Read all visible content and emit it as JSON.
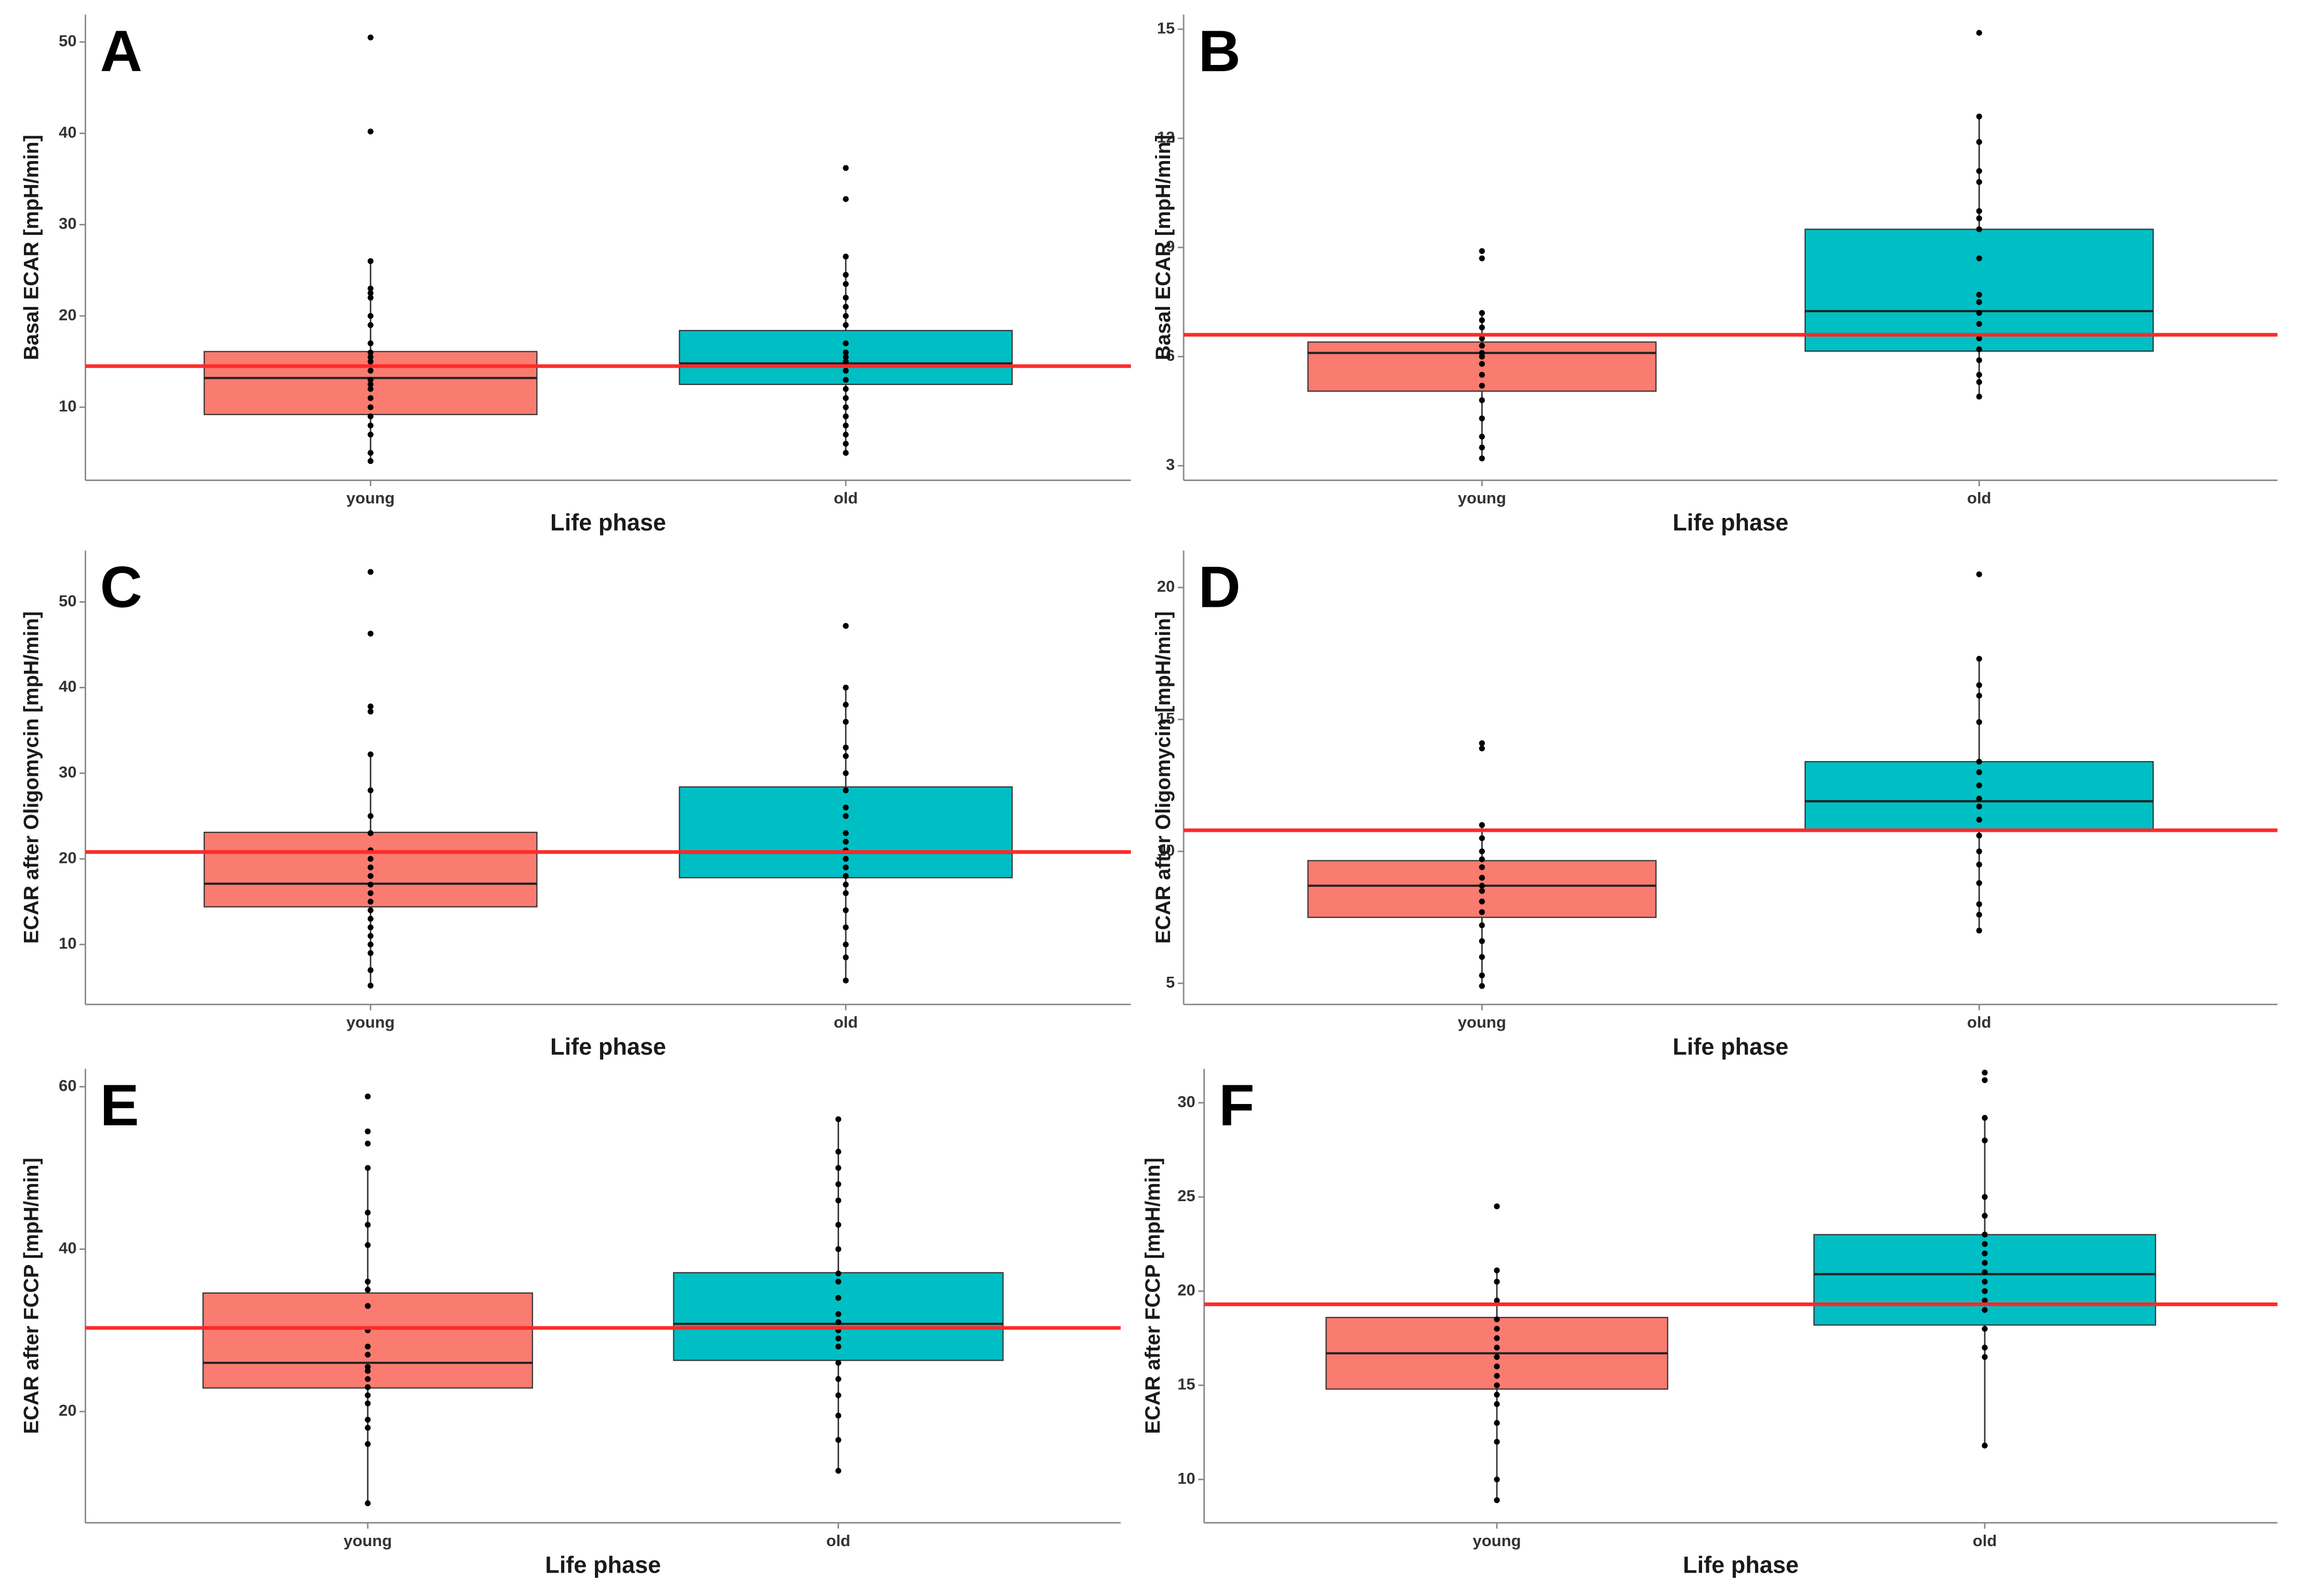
{
  "chart_data": [
    {
      "type": "box",
      "panel_label": "A",
      "ylabel": "Basal ECAR [mpH/min]",
      "xlabel": "Life phase",
      "categories": [
        "young",
        "old"
      ],
      "colors": [
        "#fa7b6f",
        "#00bfc4"
      ],
      "boxes": [
        {
          "whisker_low": 4.1,
          "q1": 9.2,
          "median": 13.2,
          "q3": 16.1,
          "whisker_high": 26,
          "points": [
            50.5,
            40.2,
            26,
            23,
            22.5,
            22,
            20,
            19,
            17,
            16,
            15.5,
            15,
            14,
            13,
            12.5,
            12,
            11,
            10,
            9,
            8,
            7,
            5,
            4.1
          ]
        },
        {
          "whisker_low": 5,
          "q1": 12.5,
          "median": 14.8,
          "q3": 18.4,
          "whisker_high": 26.5,
          "points": [
            36.2,
            32.8,
            26.5,
            24.5,
            23.5,
            22,
            21,
            20,
            19,
            17,
            16,
            15.5,
            15,
            14,
            13,
            12,
            11,
            10,
            9,
            8,
            7,
            6,
            5
          ]
        }
      ],
      "reference_line": 14.5,
      "reference_color": "#ff2a2a",
      "ylim": [
        2,
        53
      ],
      "yticks": [
        10,
        20,
        30,
        40,
        50
      ]
    },
    {
      "type": "box",
      "panel_label": "B",
      "ylabel": "Basal ECAR [mpH/min]",
      "xlabel": "Life phase",
      "categories": [
        "young",
        "old"
      ],
      "colors": [
        "#fa7b6f",
        "#00bfc4"
      ],
      "boxes": [
        {
          "whisker_low": 3.2,
          "q1": 5.05,
          "median": 6.1,
          "q3": 6.4,
          "whisker_high": 7.2,
          "points": [
            8.9,
            8.7,
            7.2,
            7,
            6.8,
            6.5,
            6.3,
            6.1,
            6,
            5.8,
            5.5,
            5.2,
            4.8,
            4.3,
            3.8,
            3.5,
            3.2
          ]
        },
        {
          "whisker_low": 4.9,
          "q1": 6.15,
          "median": 7.25,
          "q3": 9.5,
          "whisker_high": 12.6,
          "points": [
            14.9,
            12.6,
            11.9,
            11.1,
            10.8,
            10,
            9.8,
            9.5,
            8.7,
            7.7,
            7.5,
            7.2,
            6.9,
            6.5,
            6.2,
            5.9,
            5.5,
            5.3,
            4.9
          ]
        }
      ],
      "reference_line": 6.6,
      "reference_color": "#ff2a2a",
      "ylim": [
        2.6,
        15.4
      ],
      "yticks": [
        3,
        6,
        9,
        12,
        15
      ]
    },
    {
      "type": "box",
      "panel_label": "C",
      "ylabel": "ECAR after Oligomycin [mpH/min]",
      "xlabel": "Life phase",
      "categories": [
        "young",
        "old"
      ],
      "colors": [
        "#fa7b6f",
        "#00bfc4"
      ],
      "boxes": [
        {
          "whisker_low": 5.2,
          "q1": 14.4,
          "median": 17.1,
          "q3": 23.1,
          "whisker_high": 32.2,
          "points": [
            53.5,
            46.3,
            37.8,
            37.2,
            32.2,
            28,
            25,
            23,
            21,
            20,
            19,
            18,
            17,
            16,
            15,
            14,
            13,
            12,
            11,
            10,
            9,
            7,
            5.2
          ]
        },
        {
          "whisker_low": 5.8,
          "q1": 17.8,
          "median": 20.7,
          "q3": 28.4,
          "whisker_high": 40,
          "points": [
            47.2,
            40,
            38,
            36,
            33,
            32,
            30,
            28,
            26,
            25,
            23,
            22,
            21,
            20,
            19,
            18,
            17,
            16,
            14,
            12,
            10,
            8.5,
            5.8
          ]
        }
      ],
      "reference_line": 20.8,
      "reference_color": "#ff2a2a",
      "ylim": [
        3,
        56
      ],
      "yticks": [
        10,
        20,
        30,
        40,
        50
      ]
    },
    {
      "type": "box",
      "panel_label": "D",
      "ylabel": "ECAR after Oligomycin [mpH/min]",
      "xlabel": "Life phase",
      "categories": [
        "young",
        "old"
      ],
      "colors": [
        "#fa7b6f",
        "#00bfc4"
      ],
      "boxes": [
        {
          "whisker_low": 4.9,
          "q1": 7.5,
          "median": 8.7,
          "q3": 9.65,
          "whisker_high": 11,
          "points": [
            14.1,
            13.9,
            11,
            10.5,
            10,
            9.7,
            9.4,
            9,
            8.7,
            8.5,
            8.1,
            7.7,
            7.2,
            6.6,
            6,
            5.3,
            4.9
          ]
        },
        {
          "whisker_low": 7,
          "q1": 10.8,
          "median": 11.9,
          "q3": 13.4,
          "whisker_high": 17.3,
          "points": [
            20.5,
            17.3,
            16.3,
            15.9,
            14.9,
            13.4,
            13,
            12.5,
            12,
            11.7,
            11.2,
            10.6,
            10,
            9.5,
            8.8,
            8,
            7.6,
            7
          ]
        }
      ],
      "reference_line": 10.8,
      "reference_color": "#ff2a2a",
      "ylim": [
        4.2,
        21.4
      ],
      "yticks": [
        5,
        10,
        15,
        20
      ]
    },
    {
      "type": "box",
      "panel_label": "E",
      "ylabel": "ECAR after FCCP [mpH/min]",
      "xlabel": "Life phase",
      "categories": [
        "young",
        "old"
      ],
      "colors": [
        "#fa7b6f",
        "#00bfc4"
      ],
      "boxes": [
        {
          "whisker_low": 8.7,
          "q1": 22.9,
          "median": 26,
          "q3": 34.6,
          "whisker_high": 50,
          "points": [
            58.8,
            54.5,
            53,
            50,
            44.5,
            43,
            40.5,
            36,
            35,
            33,
            30,
            28,
            27,
            25.5,
            25,
            24,
            23,
            22,
            21,
            19,
            18,
            16,
            8.7
          ]
        },
        {
          "whisker_low": 12.7,
          "q1": 26.3,
          "median": 30.8,
          "q3": 37.1,
          "whisker_high": 56,
          "points": [
            56,
            52,
            50,
            48,
            46,
            43,
            40,
            37,
            36,
            34,
            32,
            31,
            30,
            29,
            28,
            26,
            24,
            22,
            19.5,
            16.5,
            12.7
          ]
        }
      ],
      "reference_line": 30.3,
      "reference_color": "#ff2a2a",
      "ylim": [
        6.3,
        62.2
      ],
      "yticks": [
        20,
        40,
        60
      ]
    },
    {
      "type": "box",
      "panel_label": "F",
      "ylabel": "ECAR after FCCP [mpH/min]",
      "xlabel": "Life phase",
      "categories": [
        "young",
        "old"
      ],
      "colors": [
        "#fa7b6f",
        "#00bfc4"
      ],
      "boxes": [
        {
          "whisker_low": 8.9,
          "q1": 14.8,
          "median": 16.7,
          "q3": 18.6,
          "whisker_high": 21.1,
          "points": [
            24.5,
            21.1,
            20.5,
            19.5,
            18.5,
            18,
            17.5,
            17,
            16.5,
            16,
            15.5,
            15,
            14.5,
            14,
            13,
            12,
            10,
            8.9
          ]
        },
        {
          "whisker_low": 11.8,
          "q1": 18.2,
          "median": 20.9,
          "q3": 23,
          "whisker_high": 29.2,
          "points": [
            31.6,
            31.2,
            29.2,
            28,
            25,
            24,
            23,
            22.5,
            22,
            21.5,
            21,
            20.5,
            20,
            19.5,
            19,
            18,
            17,
            16.5,
            11.8
          ]
        }
      ],
      "reference_line": 19.3,
      "reference_color": "#ff2a2a",
      "ylim": [
        7.7,
        31.8
      ],
      "yticks": [
        10,
        15,
        20,
        25,
        30
      ]
    }
  ]
}
